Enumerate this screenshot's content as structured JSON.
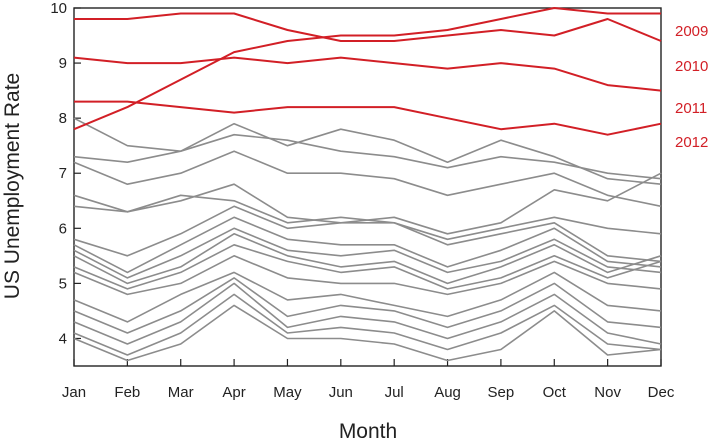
{
  "chart_data": {
    "type": "line",
    "title": "",
    "xlabel": "Month",
    "ylabel": "US Unemployment Rate",
    "categories": [
      "Jan",
      "Feb",
      "Mar",
      "Apr",
      "May",
      "Jun",
      "Jul",
      "Aug",
      "Sep",
      "Oct",
      "Nov",
      "Dec"
    ],
    "yticks": [
      "4",
      "5",
      "6",
      "7",
      "8",
      "9",
      "10"
    ],
    "ylim": [
      3.5,
      10.0
    ],
    "grid": false,
    "colors": {
      "highlight": "#d21f26",
      "background": "#8c8c8c"
    },
    "highlighted_series": [
      {
        "name": "2009",
        "values": [
          7.8,
          8.2,
          8.7,
          9.2,
          9.4,
          9.5,
          9.5,
          9.6,
          9.8,
          10.0,
          9.9,
          9.9
        ]
      },
      {
        "name": "2010",
        "values": [
          9.8,
          9.8,
          9.9,
          9.9,
          9.6,
          9.4,
          9.4,
          9.5,
          9.6,
          9.5,
          9.8,
          9.4
        ]
      },
      {
        "name": "2011",
        "values": [
          9.1,
          9.0,
          9.0,
          9.1,
          9.0,
          9.1,
          9.0,
          8.9,
          9.0,
          8.9,
          8.6,
          8.5
        ]
      },
      {
        "name": "2012",
        "values": [
          8.3,
          8.3,
          8.2,
          8.1,
          8.2,
          8.2,
          8.2,
          8.0,
          7.8,
          7.9,
          7.7,
          7.9
        ]
      }
    ],
    "other_series": [
      [
        8.0,
        7.5,
        7.4,
        7.9,
        7.5,
        7.8,
        7.6,
        7.2,
        7.6,
        7.3,
        6.9,
        6.8
      ],
      [
        7.3,
        7.2,
        7.4,
        7.7,
        7.6,
        7.4,
        7.3,
        7.1,
        7.3,
        7.2,
        7.0,
        6.9
      ],
      [
        7.2,
        6.8,
        7.0,
        7.4,
        7.0,
        7.0,
        6.9,
        6.6,
        6.8,
        7.0,
        6.6,
        6.4
      ],
      [
        6.6,
        6.3,
        6.5,
        6.8,
        6.2,
        6.1,
        6.2,
        5.9,
        6.1,
        6.7,
        6.5,
        7.0
      ],
      [
        6.4,
        6.3,
        6.6,
        6.5,
        6.1,
        6.2,
        6.1,
        5.8,
        6.0,
        6.2,
        6.0,
        5.9
      ],
      [
        5.8,
        5.5,
        5.9,
        6.4,
        6.0,
        6.1,
        6.1,
        5.7,
        5.9,
        6.1,
        5.5,
        5.4
      ],
      [
        5.7,
        5.2,
        5.7,
        6.2,
        5.8,
        5.7,
        5.7,
        5.3,
        5.6,
        6.0,
        5.4,
        5.3
      ],
      [
        5.6,
        5.1,
        5.5,
        6.0,
        5.6,
        5.5,
        5.6,
        5.2,
        5.4,
        5.8,
        5.3,
        5.2
      ],
      [
        5.5,
        5.0,
        5.3,
        5.9,
        5.5,
        5.3,
        5.4,
        5.0,
        5.3,
        5.7,
        5.2,
        5.5
      ],
      [
        5.3,
        4.9,
        5.2,
        5.7,
        5.4,
        5.2,
        5.3,
        4.9,
        5.1,
        5.5,
        5.1,
        5.4
      ],
      [
        5.2,
        4.8,
        5.0,
        5.5,
        5.1,
        5.0,
        5.0,
        4.8,
        5.0,
        5.4,
        5.0,
        4.9
      ],
      [
        4.7,
        4.3,
        4.8,
        5.2,
        4.7,
        4.8,
        4.6,
        4.4,
        4.7,
        5.2,
        4.6,
        4.5
      ],
      [
        4.5,
        4.1,
        4.5,
        5.1,
        4.4,
        4.6,
        4.5,
        4.2,
        4.5,
        5.0,
        4.3,
        4.2
      ],
      [
        4.3,
        3.9,
        4.3,
        5.0,
        4.2,
        4.4,
        4.3,
        4.0,
        4.3,
        4.8,
        4.1,
        3.9
      ],
      [
        4.1,
        3.7,
        4.1,
        4.8,
        4.1,
        4.2,
        4.1,
        3.8,
        4.1,
        4.6,
        3.9,
        3.8
      ],
      [
        4.0,
        3.6,
        3.9,
        4.6,
        4.0,
        4.0,
        3.9,
        3.6,
        3.8,
        4.5,
        3.7,
        3.8
      ]
    ]
  }
}
